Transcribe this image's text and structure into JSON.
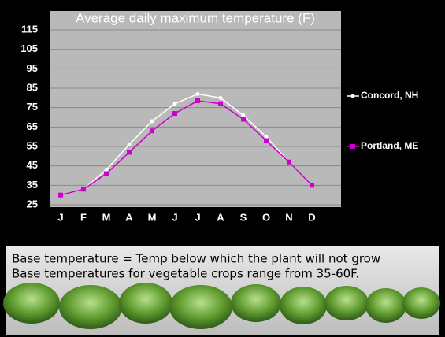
{
  "chart_data": {
    "type": "line",
    "title": "Average daily maximum temperature (F)",
    "categories": [
      "J",
      "F",
      "M",
      "A",
      "M",
      "J",
      "J",
      "A",
      "S",
      "O",
      "N",
      "D"
    ],
    "series": [
      {
        "name": "Concord, NH",
        "color": "#ffffff",
        "values": [
          30,
          33,
          43,
          56,
          68,
          77,
          82,
          80,
          71,
          60,
          47,
          35
        ]
      },
      {
        "name": "Portland, ME",
        "color": "#cc00cc",
        "values": [
          30,
          33,
          41,
          52,
          63,
          72,
          78.5,
          77,
          69,
          58,
          47,
          35
        ]
      }
    ],
    "ylim": [
      25,
      115
    ],
    "yticks": [
      25,
      35,
      45,
      55,
      65,
      75,
      85,
      95,
      105,
      115
    ],
    "grid": true
  },
  "caption": [
    "Base temperature = Temp below which the plant will not grow",
    "Base temperatures for vegetable crops range from 35-60F."
  ]
}
